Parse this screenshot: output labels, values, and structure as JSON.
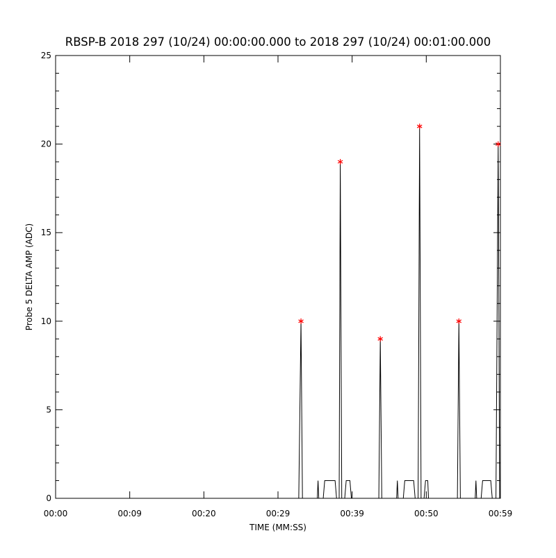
{
  "chart_data": {
    "type": "line",
    "title": "RBSP-B 2018 297 (10/24) 00:00:00.000 to 2018 297 (10/24) 00:01:00.000",
    "xlabel": "TIME (MM:SS)",
    "ylabel": "Probe 5 DELTA AMP (ADC)",
    "xlim": [
      0,
      60
    ],
    "ylim": [
      0,
      25
    ],
    "xticks": [
      {
        "value": 0,
        "label": "00:00"
      },
      {
        "value": 10,
        "label": "00:09"
      },
      {
        "value": 20,
        "label": "00:20"
      },
      {
        "value": 30,
        "label": "00:29"
      },
      {
        "value": 40,
        "label": "00:39"
      },
      {
        "value": 50,
        "label": "00:50"
      },
      {
        "value": 60,
        "label": "00:59"
      }
    ],
    "yticks": [
      0,
      5,
      10,
      15,
      20,
      25
    ],
    "grid": false,
    "series": [
      {
        "color": "#000000",
        "marker": "none",
        "x": [
          0,
          32.8,
          33.1,
          33.3,
          35.3,
          35.4,
          35.5,
          36.1,
          36.3,
          37.7,
          37.9,
          38.25,
          38.4,
          38.6,
          39.0,
          39.2,
          39.7,
          39.9,
          43.6,
          43.8,
          44.0,
          46.0,
          46.1,
          46.2,
          46.9,
          47.1,
          48.3,
          48.5,
          48.9,
          49.1,
          49.3,
          49.7,
          49.9,
          50.2,
          50.3,
          54.2,
          54.4,
          54.6,
          56.6,
          56.7,
          56.8,
          57.4,
          57.6,
          58.7,
          58.9,
          59.4,
          59.7,
          59.9
        ],
        "values": [
          0,
          0,
          10,
          0,
          0,
          1,
          0,
          0,
          1,
          1,
          0,
          0,
          19,
          0,
          0,
          1,
          1,
          0,
          0,
          9,
          0,
          0,
          1,
          0,
          0,
          1,
          1,
          0,
          0,
          21,
          0,
          0,
          1,
          1,
          0,
          0,
          10,
          0,
          0,
          1,
          0,
          0,
          1,
          1,
          0,
          0,
          20,
          0
        ]
      },
      {
        "color": "#ff0000",
        "marker": "asterisk",
        "linestyle": "none",
        "x": [
          33.1,
          38.4,
          43.8,
          49.1,
          54.4,
          59.7
        ],
        "values": [
          10,
          19,
          9,
          21,
          10,
          20
        ]
      }
    ]
  }
}
